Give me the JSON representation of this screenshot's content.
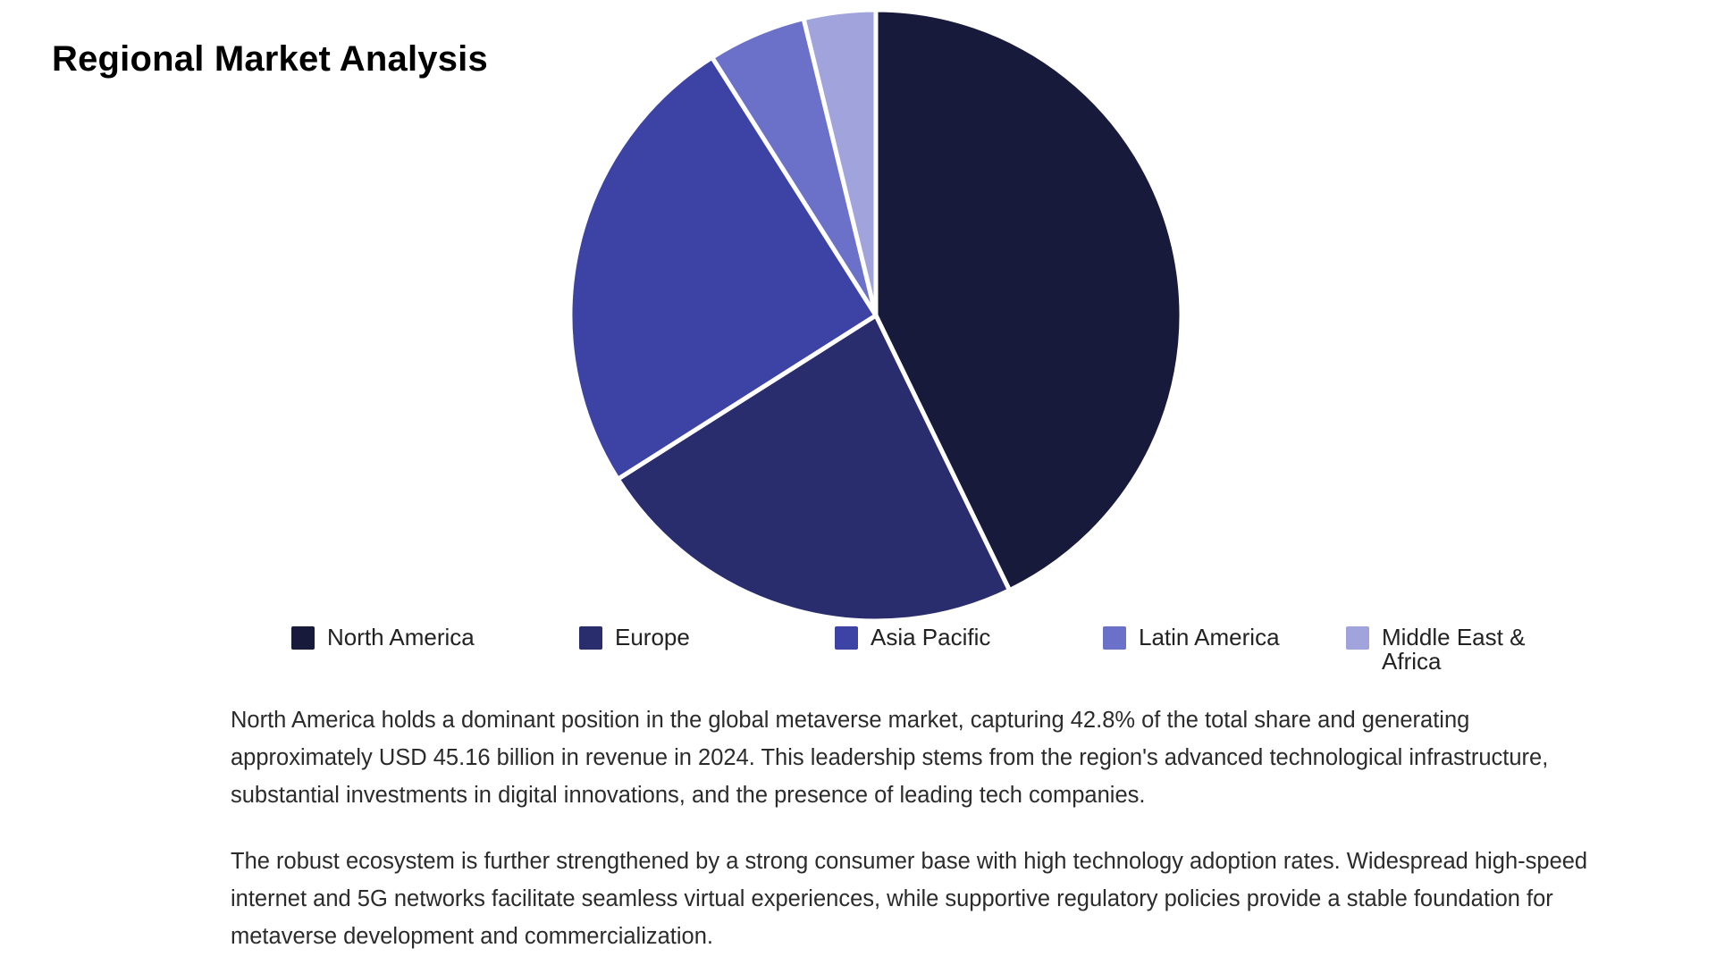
{
  "title": "Regional Market Analysis",
  "chart_data": {
    "type": "pie",
    "title": "Regional Market Analysis",
    "start_angle_deg": 0,
    "direction": "clockwise",
    "categories": [
      "North America",
      "Europe",
      "Asia Pacific",
      "Latin America",
      "Middle East & Africa"
    ],
    "values": [
      42.8,
      23.2,
      25.0,
      5.2,
      3.8
    ],
    "colors": [
      "#171a3a",
      "#292c6d",
      "#3d43a4",
      "#6b70c9",
      "#a1a4dc"
    ],
    "legend_position": "bottom"
  },
  "legend": [
    {
      "label": "North America",
      "color": "#171a3a"
    },
    {
      "label": "Europe",
      "color": "#292c6d"
    },
    {
      "label": "Asia Pacific",
      "color": "#3d43a4"
    },
    {
      "label": "Latin America",
      "color": "#6b70c9"
    },
    {
      "label": "Middle East & Africa",
      "color": "#a1a4dc"
    }
  ],
  "paragraphs": [
    "North America holds a dominant position in the global metaverse market, capturing 42.8% of the total share and generating approximately USD 45.16 billion in revenue in 2024. This leadership stems from the region's advanced technological infrastructure, substantial investments in digital innovations, and the presence of leading tech companies.",
    "The robust ecosystem is further strengthened by a strong consumer base with high technology adoption rates. Widespread high-speed internet and 5G networks facilitate seamless virtual experiences, while supportive regulatory policies provide a stable foundation for metaverse development and commercialization."
  ]
}
